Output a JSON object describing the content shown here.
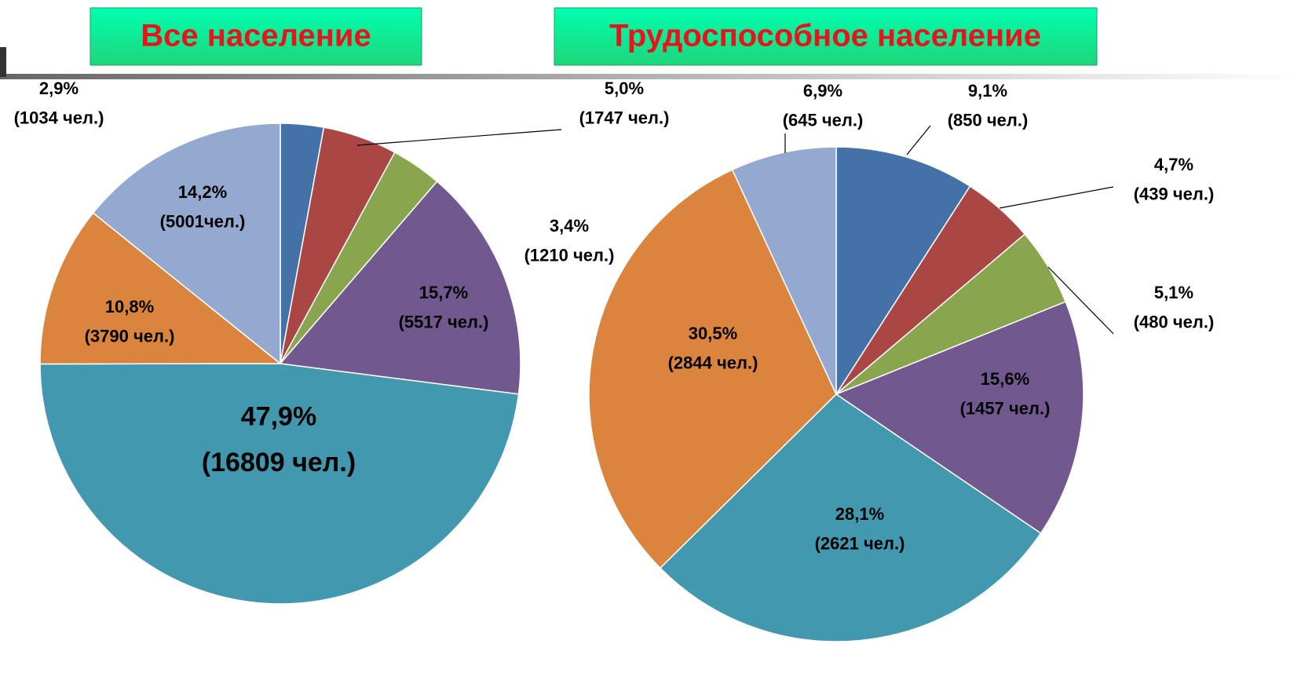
{
  "chart_data": [
    {
      "type": "pie",
      "title": "Все население",
      "categories": [
        null,
        null,
        null,
        null,
        null,
        null,
        null
      ],
      "values": [
        2.9,
        5.0,
        3.4,
        15.7,
        47.9,
        10.8,
        14.2
      ],
      "value_labels": [
        "2,9%",
        "5,0%",
        "3,4%",
        "15,7%",
        "47,9%",
        "10,8%",
        "14,2%"
      ],
      "count_labels": [
        "(1034 чел.)",
        "(1747 чел.)",
        "(1210 чел.)",
        "(5517 чел.)",
        "(16809 чел.)",
        "(3790 чел.)",
        "(5001чел.)"
      ],
      "colors": [
        "#4472a8",
        "#aa4644",
        "#89a54e",
        "#71588f",
        "#4198af",
        "#db843d",
        "#93a9cf"
      ]
    },
    {
      "type": "pie",
      "title": "Трудоспособное население",
      "categories": [
        null,
        null,
        null,
        null,
        null,
        null,
        null
      ],
      "values": [
        9.1,
        4.7,
        5.1,
        15.6,
        28.1,
        30.5,
        6.9
      ],
      "value_labels": [
        "9,1%",
        "4,7%",
        "5,1%",
        "15,6%",
        "28,1%",
        "30,5%",
        "6,9%"
      ],
      "count_labels": [
        "(850 чел.)",
        "(439 чел.)",
        "(480 чел.)",
        "(1457 чел.)",
        "(2621 чел.)",
        "(2844 чел.)",
        "(645 чел.)"
      ],
      "colors": [
        "#4472a8",
        "#aa4644",
        "#89a54e",
        "#71588f",
        "#4198af",
        "#db843d",
        "#93a9cf"
      ]
    }
  ]
}
